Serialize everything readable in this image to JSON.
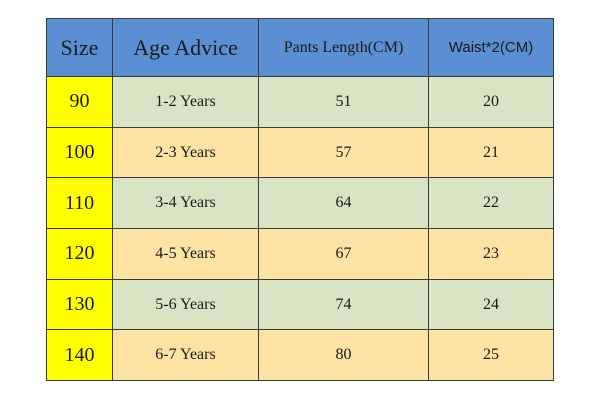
{
  "table": {
    "header": [
      "Size",
      "Age Advice",
      "Pants Length(CM)",
      "Waist*2(CM)"
    ],
    "rows": [
      [
        90,
        "1-2 Years",
        51,
        20
      ],
      [
        100,
        "2-3 Years",
        57,
        21
      ],
      [
        110,
        "3-4 Years",
        64,
        22
      ],
      [
        120,
        "4-5 Years",
        67,
        23
      ],
      [
        130,
        "5-6 Years",
        74,
        24
      ],
      [
        140,
        "6-7 Years",
        80,
        25
      ]
    ]
  }
}
